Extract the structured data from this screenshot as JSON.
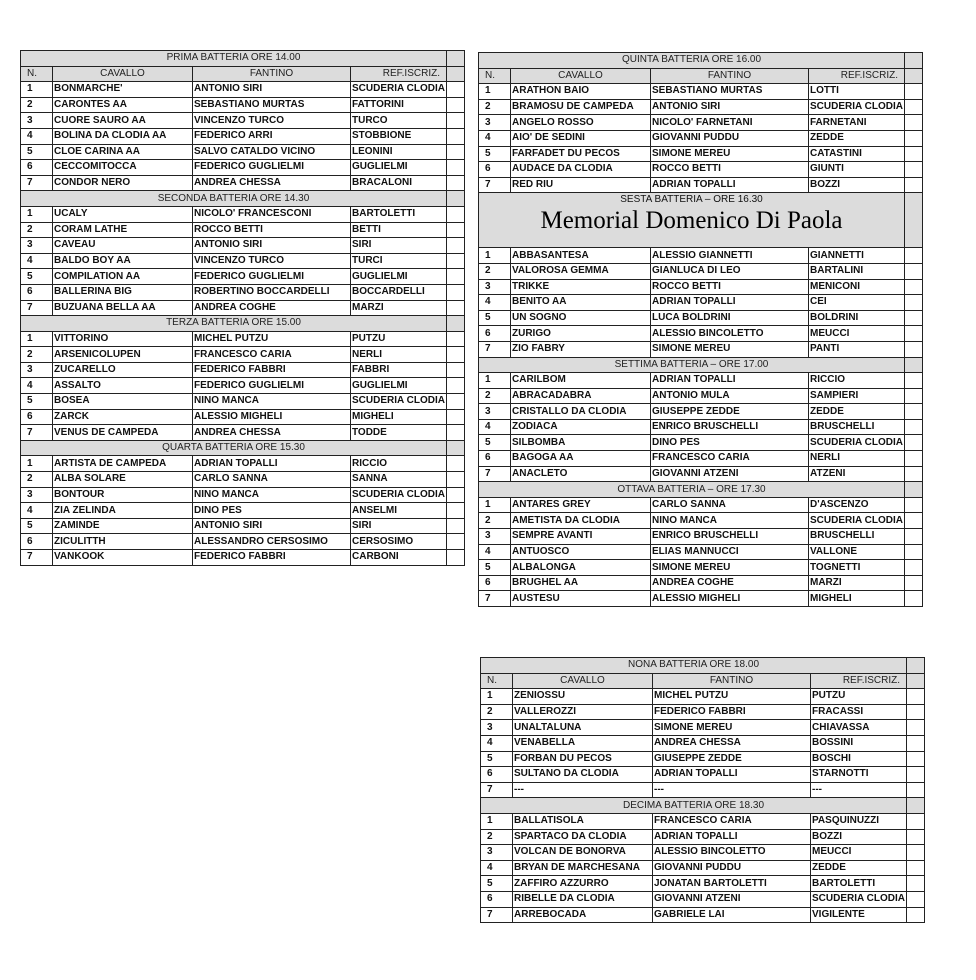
{
  "columns": {
    "n": "N.",
    "cavallo": "CAVALLO",
    "fantino": "FANTINO",
    "ref": "REF.ISCRIZ."
  },
  "tables": [
    {
      "batterie": [
        {
          "title": "PRIMA BATTERIA ORE 14.00",
          "header": true,
          "rows": [
            [
              "1",
              "BONMARCHE'",
              "ANTONIO SIRI",
              "SCUDERIA CLODIA"
            ],
            [
              "2",
              "CARONTES AA",
              "SEBASTIANO MURTAS",
              "FATTORINI"
            ],
            [
              "3",
              "CUORE SAURO AA",
              "VINCENZO TURCO",
              "TURCO"
            ],
            [
              "4",
              "BOLINA DA CLODIA AA",
              "FEDERICO ARRI",
              "STOBBIONE"
            ],
            [
              "5",
              "CLOE CARINA AA",
              "SALVO CATALDO VICINO",
              "LEONINI"
            ],
            [
              "6",
              "CECCOMITOCCA",
              "FEDERICO GUGLIELMI",
              "GUGLIELMI"
            ],
            [
              "7",
              "CONDOR NERO",
              "ANDREA CHESSA",
              "BRACALONI"
            ]
          ]
        },
        {
          "title": "SECONDA BATTERIA ORE 14.30",
          "rows": [
            [
              "1",
              "UCALY",
              "NICOLO' FRANCESCONI",
              "BARTOLETTI"
            ],
            [
              "2",
              "CORAM LATHE",
              "ROCCO BETTI",
              "BETTI"
            ],
            [
              "3",
              "CAVEAU",
              "ANTONIO SIRI",
              "SIRI"
            ],
            [
              "4",
              "BALDO BOY AA",
              "VINCENZO TURCO",
              "TURCI"
            ],
            [
              "5",
              "COMPILATION AA",
              "FEDERICO GUGLIELMI",
              "GUGLIELMI"
            ],
            [
              "6",
              "BALLERINA BIG",
              "ROBERTINO BOCCARDELLI",
              "BOCCARDELLI"
            ],
            [
              "7",
              "BUZUANA BELLA AA",
              "ANDREA COGHE",
              "MARZI"
            ]
          ]
        },
        {
          "title": "TERZA BATTERIA ORE 15.00",
          "rows": [
            [
              "1",
              "VITTORINO",
              "MICHEL PUTZU",
              "PUTZU"
            ],
            [
              "2",
              "ARSENICOLUPEN",
              "FRANCESCO CARIA",
              "NERLI"
            ],
            [
              "3",
              "ZUCARELLO",
              "FEDERICO FABBRI",
              "FABBRI"
            ],
            [
              "4",
              "ASSALTO",
              "FEDERICO GUGLIELMI",
              "GUGLIELMI"
            ],
            [
              "5",
              "BOSEA",
              "NINO MANCA",
              "SCUDERIA CLODIA"
            ],
            [
              "6",
              "ZARCK",
              "ALESSIO MIGHELI",
              "MIGHELI"
            ],
            [
              "7",
              "VENUS DE CAMPEDA",
              "ANDREA CHESSA",
              "TODDE"
            ]
          ]
        },
        {
          "title": "QUARTA BATTERIA ORE 15.30",
          "rows": [
            [
              "1",
              "ARTISTA DE CAMPEDA",
              "ADRIAN TOPALLI",
              "RICCIO"
            ],
            [
              "2",
              "ALBA SOLARE",
              "CARLO SANNA",
              "SANNA"
            ],
            [
              "3",
              "BONTOUR",
              "NINO MANCA",
              "SCUDERIA CLODIA"
            ],
            [
              "4",
              "ZIA ZELINDA",
              "DINO PES",
              "ANSELMI"
            ],
            [
              "5",
              "ZAMINDE",
              "ANTONIO SIRI",
              "SIRI"
            ],
            [
              "6",
              "ZICULITTH",
              "ALESSANDRO CERSOSIMO",
              "CERSOSIMO"
            ],
            [
              "7",
              "VANKOOK",
              "FEDERICO FABBRI",
              "CARBONI"
            ]
          ]
        }
      ]
    },
    {
      "batterie": [
        {
          "title": "QUINTA BATTERIA ORE 16.00",
          "header": true,
          "rows": [
            [
              "1",
              "ARATHON BAIO",
              "SEBASTIANO MURTAS",
              "LOTTI"
            ],
            [
              "2",
              "BRAMOSU DE CAMPEDA",
              "ANTONIO SIRI",
              "SCUDERIA CLODIA"
            ],
            [
              "3",
              "ANGELO ROSSO",
              "NICOLO' FARNETANI",
              "FARNETANI"
            ],
            [
              "4",
              "AIO' DE SEDINI",
              "GIOVANNI PUDDU",
              "ZEDDE"
            ],
            [
              "5",
              "FARFADET DU PECOS",
              "SIMONE MEREU",
              "CATASTINI"
            ],
            [
              "6",
              "AUDACE DA CLODIA",
              "ROCCO BETTI",
              "GIUNTI"
            ],
            [
              "7",
              "RED RIU",
              "ADRIAN TOPALLI",
              "BOZZI"
            ]
          ]
        },
        {
          "title": "SESTA BATTERIA  –  ORE 16.30",
          "memorial": "Memorial  Domenico Di Paola",
          "rows": [
            [
              "1",
              "ABBASANTESA",
              "ALESSIO GIANNETTI",
              "GIANNETTI"
            ],
            [
              "2",
              "VALOROSA GEMMA",
              "GIANLUCA DI LEO",
              "BARTALINI"
            ],
            [
              "3",
              "TRIKKE",
              "ROCCO BETTI",
              "MENICONI"
            ],
            [
              "4",
              "BENITO AA",
              "ADRIAN TOPALLI",
              "CEI"
            ],
            [
              "5",
              "UN SOGNO",
              "LUCA BOLDRINI",
              "BOLDRINI"
            ],
            [
              "6",
              "ZURIGO",
              "ALESSIO BINCOLETTO",
              "MEUCCI"
            ],
            [
              "7",
              "ZIO FABRY",
              "SIMONE MEREU",
              "PANTI"
            ]
          ]
        },
        {
          "title": "SETTIMA BATTERIA – ORE 17.00",
          "rows": [
            [
              "1",
              "CARILBOM",
              "ADRIAN TOPALLI",
              "RICCIO"
            ],
            [
              "2",
              "ABRACADABRA",
              "ANTONIO MULA",
              "SAMPIERI"
            ],
            [
              "3",
              "CRISTALLO DA CLODIA",
              "GIUSEPPE ZEDDE",
              "ZEDDE"
            ],
            [
              "4",
              "ZODIACA",
              "ENRICO BRUSCHELLI",
              "BRUSCHELLI"
            ],
            [
              "5",
              "SILBOMBA",
              "DINO PES",
              "SCUDERIA CLODIA"
            ],
            [
              "6",
              "BAGOGA AA",
              "FRANCESCO CARIA",
              "NERLI"
            ],
            [
              "7",
              "ANACLETO",
              "GIOVANNI ATZENI",
              "ATZENI"
            ]
          ]
        },
        {
          "title": "OTTAVA BATTERIA – ORE 17.30",
          "rows": [
            [
              "1",
              "ANTARES GREY",
              "CARLO SANNA",
              "D'ASCENZO"
            ],
            [
              "2",
              "AMETISTA DA CLODIA",
              "NINO MANCA",
              "SCUDERIA CLODIA"
            ],
            [
              "3",
              "SEMPRE AVANTI",
              "ENRICO BRUSCHELLI",
              "BRUSCHELLI"
            ],
            [
              "4",
              "ANTUOSCO",
              "ELIAS MANNUCCI",
              "VALLONE"
            ],
            [
              "5",
              "ALBALONGA",
              "SIMONE MEREU",
              "TOGNETTI"
            ],
            [
              "6",
              "BRUGHEL AA",
              "ANDREA COGHE",
              "MARZI"
            ],
            [
              "7",
              "AUSTESU",
              "ALESSIO MIGHELI",
              "MIGHELI"
            ]
          ]
        }
      ]
    },
    {
      "batterie": [
        {
          "title": "NONA BATTERIA ORE 18.00",
          "header": true,
          "rows": [
            [
              "1",
              "ZENIOSSU",
              "MICHEL PUTZU",
              "PUTZU"
            ],
            [
              "2",
              "VALLEROZZI",
              "FEDERICO FABBRI",
              "FRACASSI"
            ],
            [
              "3",
              "UNALTALUNA",
              "SIMONE MEREU",
              "CHIAVASSA"
            ],
            [
              "4",
              "VENABELLA",
              "ANDREA CHESSA",
              "BOSSINI"
            ],
            [
              "5",
              "FORBAN DU PECOS",
              "GIUSEPPE ZEDDE",
              "BOSCHI"
            ],
            [
              "6",
              "SULTANO DA CLODIA",
              "ADRIAN TOPALLI",
              "STARNOTTI"
            ],
            [
              "7",
              "---",
              "---",
              "---"
            ]
          ]
        },
        {
          "title": "DECIMA BATTERIA ORE 18.30",
          "rows": [
            [
              "1",
              "BALLATISOLA",
              "FRANCESCO CARIA",
              "PASQUINUZZI"
            ],
            [
              "2",
              "SPARTACO DA CLODIA",
              "ADRIAN TOPALLI",
              "BOZZI"
            ],
            [
              "3",
              "VOLCAN DE BONORVA",
              "ALESSIO BINCOLETTO",
              "MEUCCI"
            ],
            [
              "4",
              "BRYAN DE MARCHESANA",
              "GIOVANNI PUDDU",
              "ZEDDE"
            ],
            [
              "5",
              "ZAFFIRO AZZURRO",
              "JONATAN BARTOLETTI",
              "BARTOLETTI"
            ],
            [
              "6",
              "RIBELLE DA CLODIA",
              "GIOVANNI ATZENI",
              "SCUDERIA CLODIA"
            ],
            [
              "7",
              "ARREBOCADA",
              "GABRIELE LAI",
              "VIGILENTE"
            ]
          ]
        }
      ]
    }
  ]
}
